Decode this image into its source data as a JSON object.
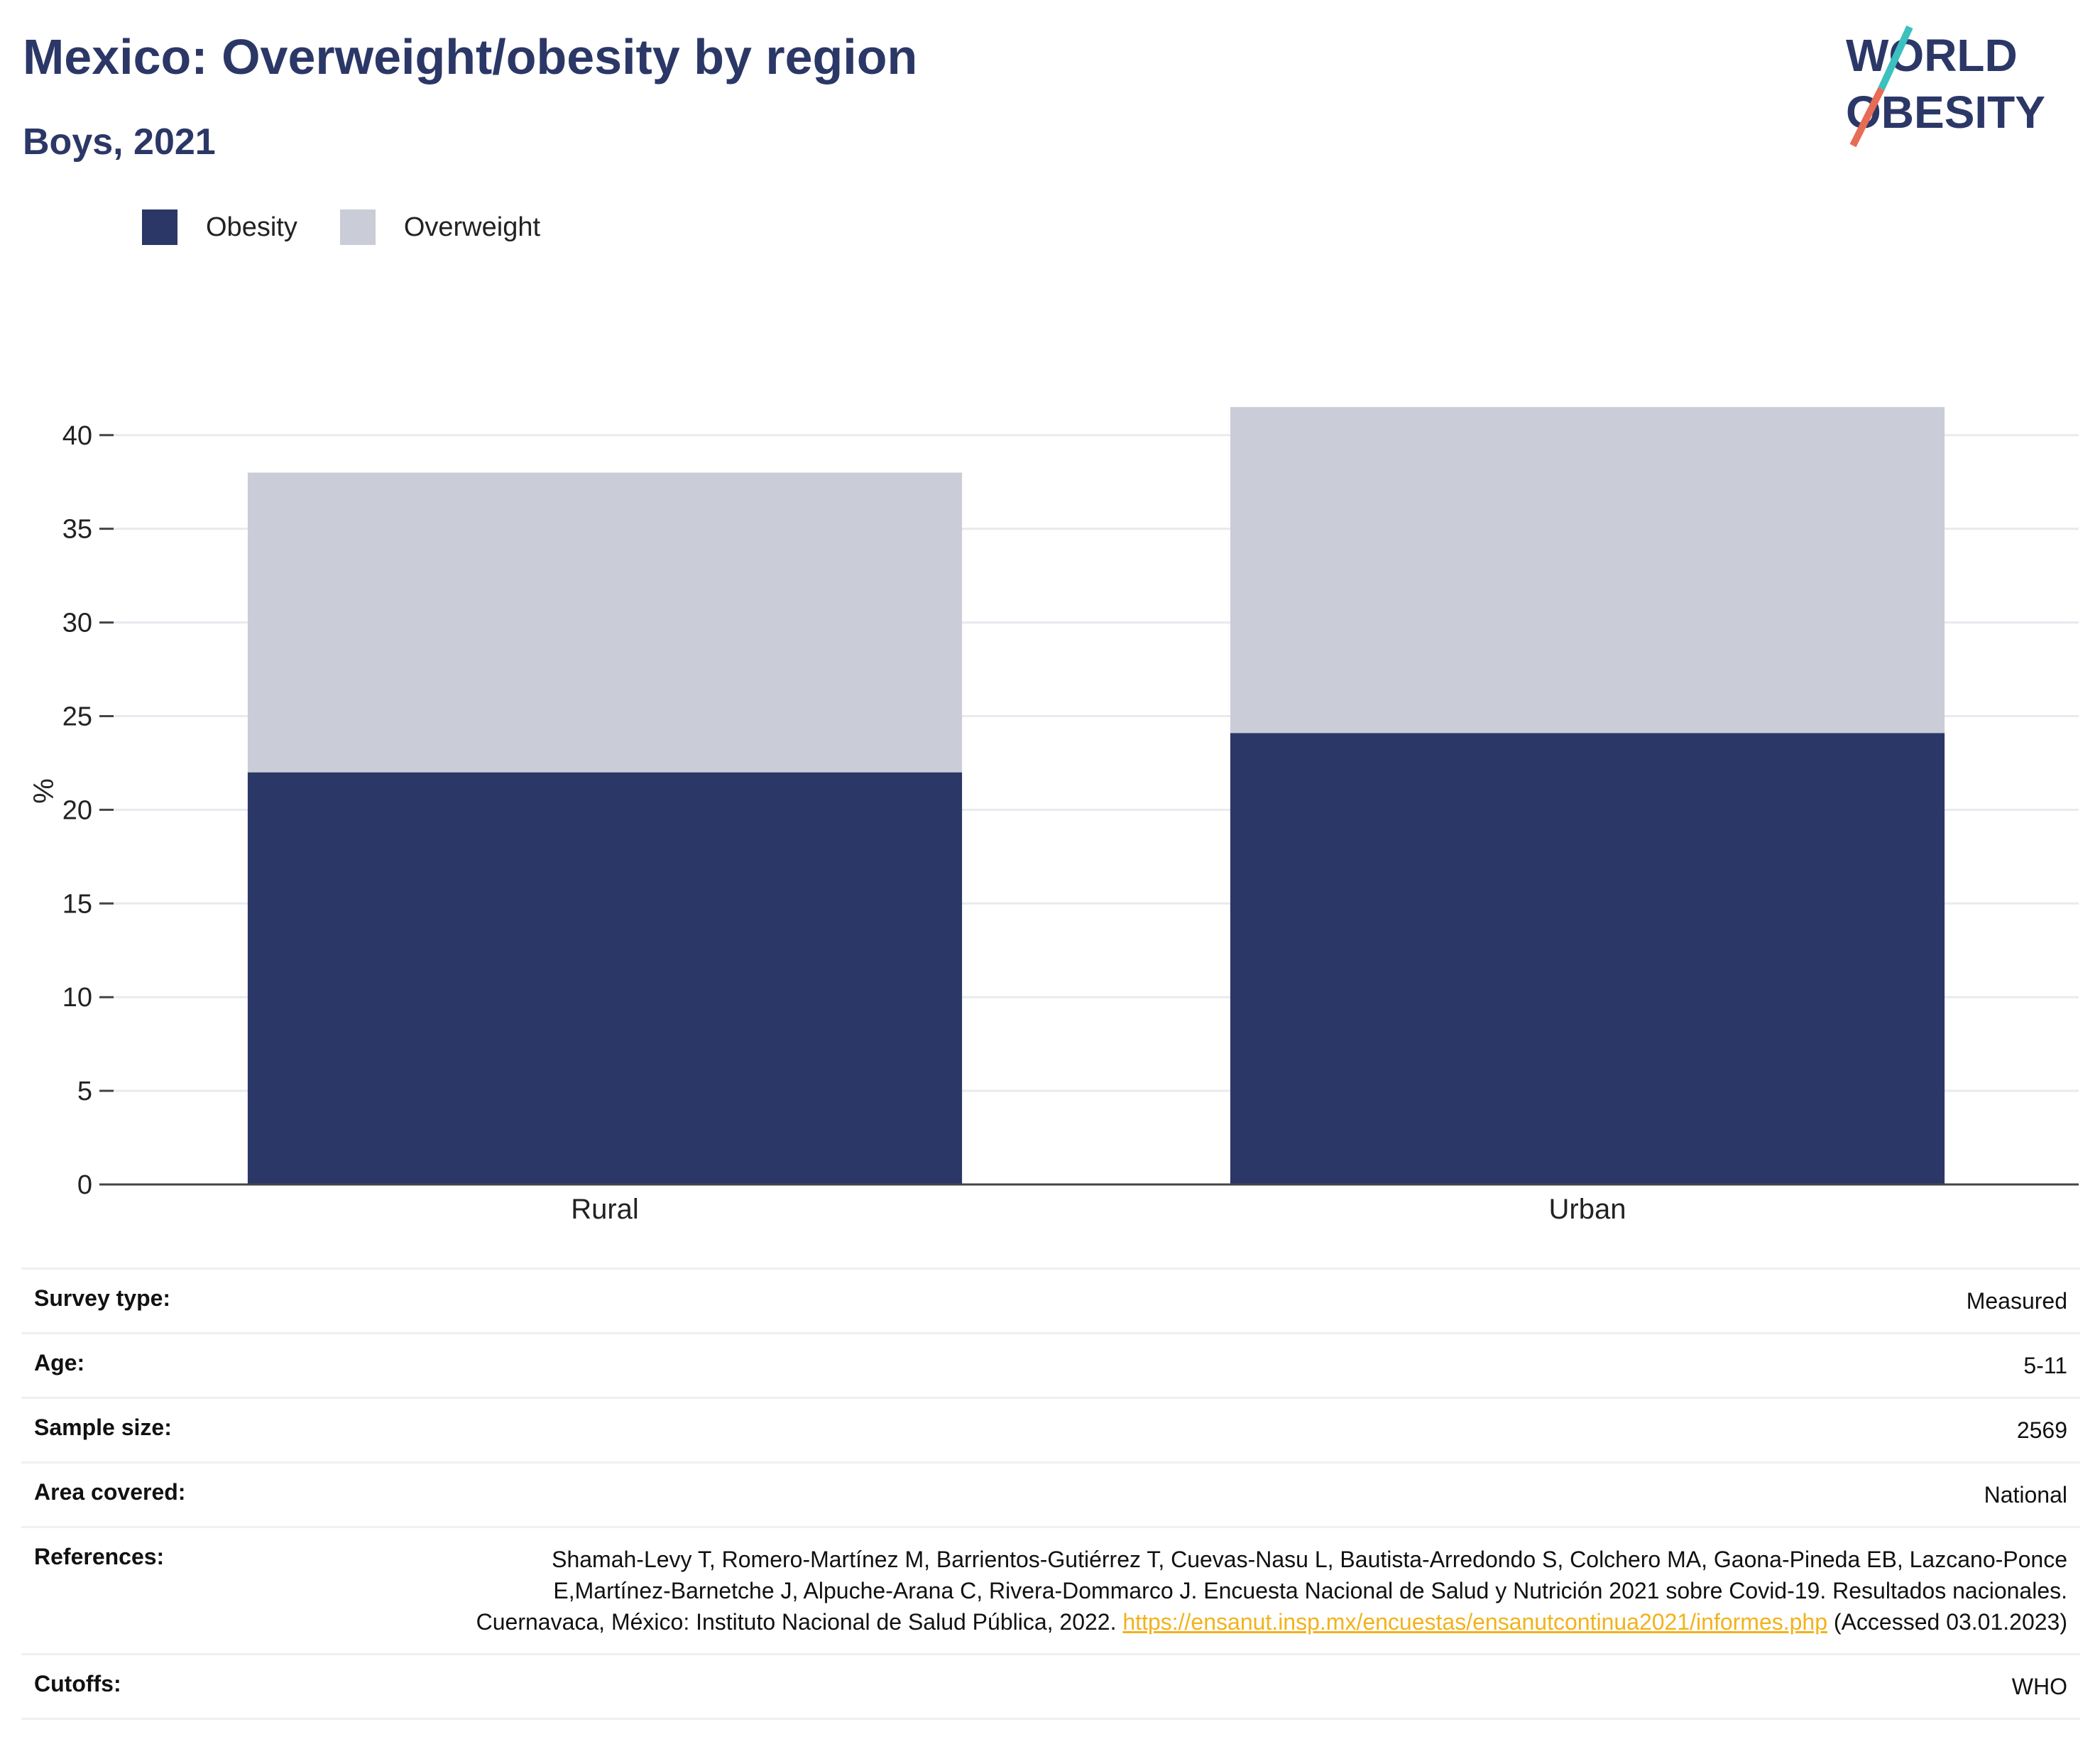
{
  "header": {
    "title": "Mexico: Overweight/obesity by region",
    "subtitle": "Boys, 2021"
  },
  "logo": {
    "line1": "WORLD",
    "line2": "OBESITY",
    "colors": {
      "text": "#2b3766",
      "slash_top": "#3cc0c0",
      "slash_bottom": "#e86b56"
    }
  },
  "chart_data": {
    "type": "bar",
    "stacked": true,
    "categories": [
      "Rural",
      "Urban"
    ],
    "series": [
      {
        "name": "Obesity",
        "values": [
          22.0,
          24.1
        ],
        "color": "#2b3766"
      },
      {
        "name": "Overweight",
        "values": [
          16.0,
          17.4
        ],
        "color": "#cacdd8"
      }
    ],
    "ylabel": "%",
    "ylim": [
      0,
      42
    ],
    "yticks": [
      0,
      5,
      10,
      15,
      20,
      25,
      30,
      35,
      40
    ],
    "grid": true,
    "legend": "top-left"
  },
  "meta": [
    {
      "key": "Survey type:",
      "value": "Measured"
    },
    {
      "key": "Age:",
      "value": "5-11"
    },
    {
      "key": "Sample size:",
      "value": "2569"
    },
    {
      "key": "Area covered:",
      "value": "National"
    },
    {
      "key": "References:",
      "value": "Shamah-Levy T, Romero-Martínez M, Barrientos-Gutiérrez T, Cuevas-Nasu L, Bautista-Arredondo S, Colchero MA, Gaona-Pineda EB, Lazcano-Ponce E,Martínez-Barnetche J, Alpuche-Arana C, Rivera-Dommarco J. Encuesta Nacional de Salud y Nutrición 2021 sobre Covid-19. Resultados nacionales. Cuernavaca, México: Instituto Nacional de Salud Pública, 2022.",
      "link": "https://ensanut.insp.mx/encuestas/ensanutcontinua2021/informes.php",
      "suffix": " (Accessed 03.01.2023)"
    },
    {
      "key": "Cutoffs:",
      "value": "WHO"
    }
  ]
}
